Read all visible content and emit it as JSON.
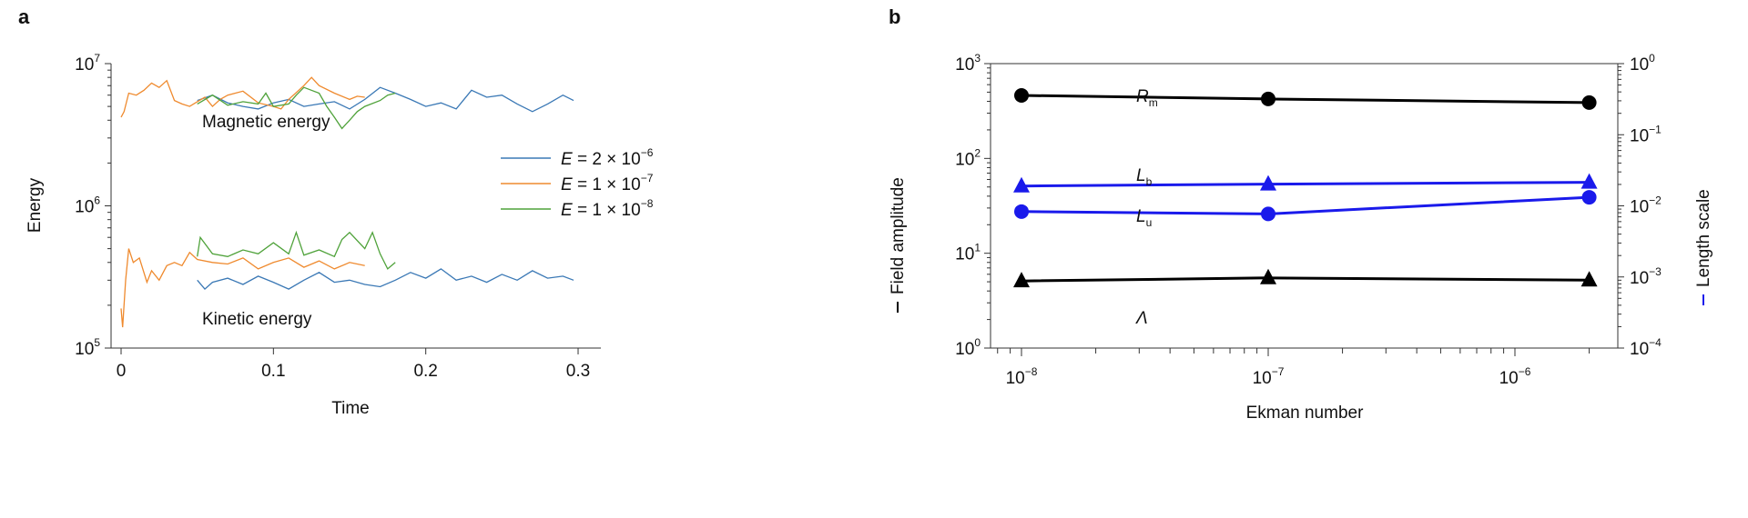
{
  "chart_data": [
    {
      "panel_label": "a",
      "type": "line",
      "xlabel": "Time",
      "ylabel": "Energy",
      "xlim": [
        -0.02,
        0.33
      ],
      "ylim": [
        100000,
        10000000
      ],
      "yscale": "log",
      "xticks": [
        "0",
        "0.1",
        "0.2",
        "0.3"
      ],
      "xtick_values": [
        0,
        0.1,
        0.2,
        0.3
      ],
      "yticks": [
        {
          "base": "10",
          "exp": "5",
          "value": 100000
        },
        {
          "base": "10",
          "exp": "6",
          "value": 1000000
        },
        {
          "base": "10",
          "exp": "7",
          "value": 10000000
        }
      ],
      "grid": false,
      "legend_placement": "center-right",
      "annotations": {
        "magnetic": "Magnetic energy",
        "kinetic": "Kinetic energy"
      },
      "series": [
        {
          "name": "E = 2 × 10−6",
          "legend": {
            "var": "E",
            "text": " = 2 × 10",
            "exp": "−6"
          },
          "color": "#3a78b5",
          "magnetic": [
            [
              0.05,
              5500000.0
            ],
            [
              0.06,
              6000000.0
            ],
            [
              0.07,
              5300000.0
            ],
            [
              0.08,
              5000000.0
            ],
            [
              0.09,
              4800000.0
            ],
            [
              0.1,
              5300000.0
            ],
            [
              0.11,
              5600000.0
            ],
            [
              0.12,
              5000000.0
            ],
            [
              0.13,
              5200000.0
            ],
            [
              0.14,
              5400000.0
            ],
            [
              0.15,
              4800000.0
            ],
            [
              0.16,
              5600000.0
            ],
            [
              0.17,
              6800000.0
            ],
            [
              0.18,
              6200000.0
            ],
            [
              0.19,
              5600000.0
            ],
            [
              0.2,
              5000000.0
            ],
            [
              0.21,
              5300000.0
            ],
            [
              0.22,
              4800000.0
            ],
            [
              0.23,
              6500000.0
            ],
            [
              0.24,
              5800000.0
            ],
            [
              0.25,
              6000000.0
            ],
            [
              0.26,
              5200000.0
            ],
            [
              0.27,
              4600000.0
            ],
            [
              0.28,
              5200000.0
            ],
            [
              0.29,
              6000000.0
            ],
            [
              0.297,
              5500000.0
            ]
          ],
          "kinetic": [
            [
              0.05,
              300000.0
            ],
            [
              0.055,
              260000.0
            ],
            [
              0.06,
              290000.0
            ],
            [
              0.07,
              310000.0
            ],
            [
              0.08,
              280000.0
            ],
            [
              0.09,
              320000.0
            ],
            [
              0.1,
              290000.0
            ],
            [
              0.11,
              260000.0
            ],
            [
              0.12,
              300000.0
            ],
            [
              0.13,
              340000.0
            ],
            [
              0.14,
              290000.0
            ],
            [
              0.15,
              300000.0
            ],
            [
              0.16,
              280000.0
            ],
            [
              0.17,
              270000.0
            ],
            [
              0.18,
              300000.0
            ],
            [
              0.19,
              340000.0
            ],
            [
              0.2,
              310000.0
            ],
            [
              0.21,
              360000.0
            ],
            [
              0.22,
              300000.0
            ],
            [
              0.23,
              320000.0
            ],
            [
              0.24,
              290000.0
            ],
            [
              0.25,
              330000.0
            ],
            [
              0.26,
              300000.0
            ],
            [
              0.27,
              350000.0
            ],
            [
              0.28,
              310000.0
            ],
            [
              0.29,
              320000.0
            ],
            [
              0.297,
              300000.0
            ]
          ]
        },
        {
          "name": "E = 1 × 10−7",
          "legend": {
            "var": "E",
            "text": " = 1 × 10",
            "exp": "−7"
          },
          "color": "#ef8a2e",
          "magnetic": [
            [
              0,
              4200000.0
            ],
            [
              0.002,
              4600000.0
            ],
            [
              0.005,
              6200000.0
            ],
            [
              0.01,
              6000000.0
            ],
            [
              0.015,
              6500000.0
            ],
            [
              0.02,
              7300000.0
            ],
            [
              0.025,
              6800000.0
            ],
            [
              0.03,
              7600000.0
            ],
            [
              0.035,
              5500000.0
            ],
            [
              0.04,
              5200000.0
            ],
            [
              0.045,
              5000000.0
            ],
            [
              0.05,
              5400000.0
            ],
            [
              0.055,
              5800000.0
            ],
            [
              0.06,
              5000000.0
            ],
            [
              0.065,
              5600000.0
            ],
            [
              0.07,
              6000000.0
            ],
            [
              0.08,
              6400000.0
            ],
            [
              0.09,
              5300000.0
            ],
            [
              0.1,
              5000000.0
            ],
            [
              0.105,
              4800000.0
            ],
            [
              0.11,
              5600000.0
            ],
            [
              0.12,
              7000000.0
            ],
            [
              0.125,
              8000000.0
            ],
            [
              0.13,
              7000000.0
            ],
            [
              0.14,
              6200000.0
            ],
            [
              0.15,
              5600000.0
            ],
            [
              0.155,
              5900000.0
            ],
            [
              0.16,
              5800000.0
            ]
          ],
          "kinetic": [
            [
              0,
              190000.0
            ],
            [
              0.001,
              140000.0
            ],
            [
              0.003,
              300000.0
            ],
            [
              0.005,
              500000.0
            ],
            [
              0.008,
              400000.0
            ],
            [
              0.012,
              430000.0
            ],
            [
              0.017,
              290000.0
            ],
            [
              0.02,
              350000.0
            ],
            [
              0.025,
              300000.0
            ],
            [
              0.03,
              380000.0
            ],
            [
              0.035,
              400000.0
            ],
            [
              0.04,
              380000.0
            ],
            [
              0.045,
              470000.0
            ],
            [
              0.05,
              420000.0
            ],
            [
              0.06,
              400000.0
            ],
            [
              0.07,
              390000.0
            ],
            [
              0.08,
              430000.0
            ],
            [
              0.09,
              360000.0
            ],
            [
              0.1,
              400000.0
            ],
            [
              0.11,
              430000.0
            ],
            [
              0.12,
              370000.0
            ],
            [
              0.13,
              410000.0
            ],
            [
              0.14,
              360000.0
            ],
            [
              0.15,
              400000.0
            ],
            [
              0.16,
              380000.0
            ]
          ]
        },
        {
          "name": "E = 1 × 10−8",
          "legend": {
            "var": "E",
            "text": " = 1 × 10",
            "exp": "−8"
          },
          "color": "#4fa23a",
          "magnetic": [
            [
              0.05,
              5200000.0
            ],
            [
              0.06,
              6000000.0
            ],
            [
              0.07,
              5100000.0
            ],
            [
              0.08,
              5400000.0
            ],
            [
              0.09,
              5200000.0
            ],
            [
              0.095,
              6200000.0
            ],
            [
              0.1,
              5000000.0
            ],
            [
              0.11,
              5200000.0
            ],
            [
              0.115,
              6000000.0
            ],
            [
              0.12,
              6800000.0
            ],
            [
              0.13,
              6200000.0
            ],
            [
              0.135,
              5000000.0
            ],
            [
              0.14,
              4200000.0
            ],
            [
              0.145,
              3500000.0
            ],
            [
              0.15,
              4000000.0
            ],
            [
              0.155,
              4600000.0
            ],
            [
              0.16,
              5000000.0
            ],
            [
              0.17,
              5500000.0
            ],
            [
              0.175,
              6000000.0
            ],
            [
              0.18,
              6200000.0
            ]
          ],
          "kinetic": [
            [
              0.05,
              440000.0
            ],
            [
              0.052,
              600000.0
            ],
            [
              0.06,
              460000.0
            ],
            [
              0.07,
              440000.0
            ],
            [
              0.08,
              490000.0
            ],
            [
              0.09,
              460000.0
            ],
            [
              0.1,
              550000.0
            ],
            [
              0.11,
              460000.0
            ],
            [
              0.115,
              650000.0
            ],
            [
              0.12,
              450000.0
            ],
            [
              0.13,
              490000.0
            ],
            [
              0.14,
              440000.0
            ],
            [
              0.145,
              580000.0
            ],
            [
              0.15,
              650000.0
            ],
            [
              0.16,
              500000.0
            ],
            [
              0.165,
              650000.0
            ],
            [
              0.17,
              460000.0
            ],
            [
              0.175,
              360000.0
            ],
            [
              0.18,
              400000.0
            ]
          ]
        }
      ]
    },
    {
      "panel_label": "b",
      "type": "line",
      "xlabel": "Ekman number",
      "xscale": "log",
      "xlim": [
        6e-09,
        3e-06
      ],
      "xticks": [
        {
          "base": "10",
          "exp": "−8",
          "value": 1e-08
        },
        {
          "base": "10",
          "exp": "−7",
          "value": 1e-07
        },
        {
          "base": "10",
          "exp": "−6",
          "value": 1e-06
        }
      ],
      "ylabel_left": "Field amplitude",
      "ylabel_right": "Length scale",
      "ylim_left": [
        1,
        1000
      ],
      "ylim_right": [
        0.0001,
        1
      ],
      "yscale": "log",
      "yticks_left": [
        {
          "base": "10",
          "exp": "0",
          "value": 1
        },
        {
          "base": "10",
          "exp": "1",
          "value": 10
        },
        {
          "base": "10",
          "exp": "2",
          "value": 100
        },
        {
          "base": "10",
          "exp": "3",
          "value": 1000
        }
      ],
      "yticks_right": [
        {
          "base": "10",
          "exp": "−4",
          "value": 0.0001
        },
        {
          "base": "10",
          "exp": "−3",
          "value": 0.001
        },
        {
          "base": "10",
          "exp": "−2",
          "value": 0.01
        },
        {
          "base": "10",
          "exp": "−1",
          "value": 0.1
        },
        {
          "base": "10",
          "exp": "0",
          "value": 1
        }
      ],
      "left_color": "#000000",
      "right_color": "#1a1aeb",
      "grid": false,
      "x": [
        1e-08,
        1e-07,
        2e-06
      ],
      "series": [
        {
          "label": {
            "main": "R",
            "sub": "m"
          },
          "axis": "left",
          "marker": "circle",
          "color": "#000000",
          "values": [
            462,
            424,
            388
          ]
        },
        {
          "label": {
            "main": "L",
            "sub": "b"
          },
          "axis": "right",
          "marker": "triangle",
          "color": "#1a1aeb",
          "values": [
            0.019,
            0.0202,
            0.0214
          ]
        },
        {
          "label": {
            "main": "L",
            "sub": "u"
          },
          "axis": "right",
          "marker": "circle",
          "color": "#1a1aeb",
          "values": [
            0.0083,
            0.0077,
            0.0132
          ]
        },
        {
          "label": {
            "main": "Λ",
            "sub": ""
          },
          "axis": "left",
          "marker": "triangle",
          "color": "#000000",
          "values": [
            5.1,
            5.5,
            5.2
          ]
        }
      ]
    }
  ]
}
